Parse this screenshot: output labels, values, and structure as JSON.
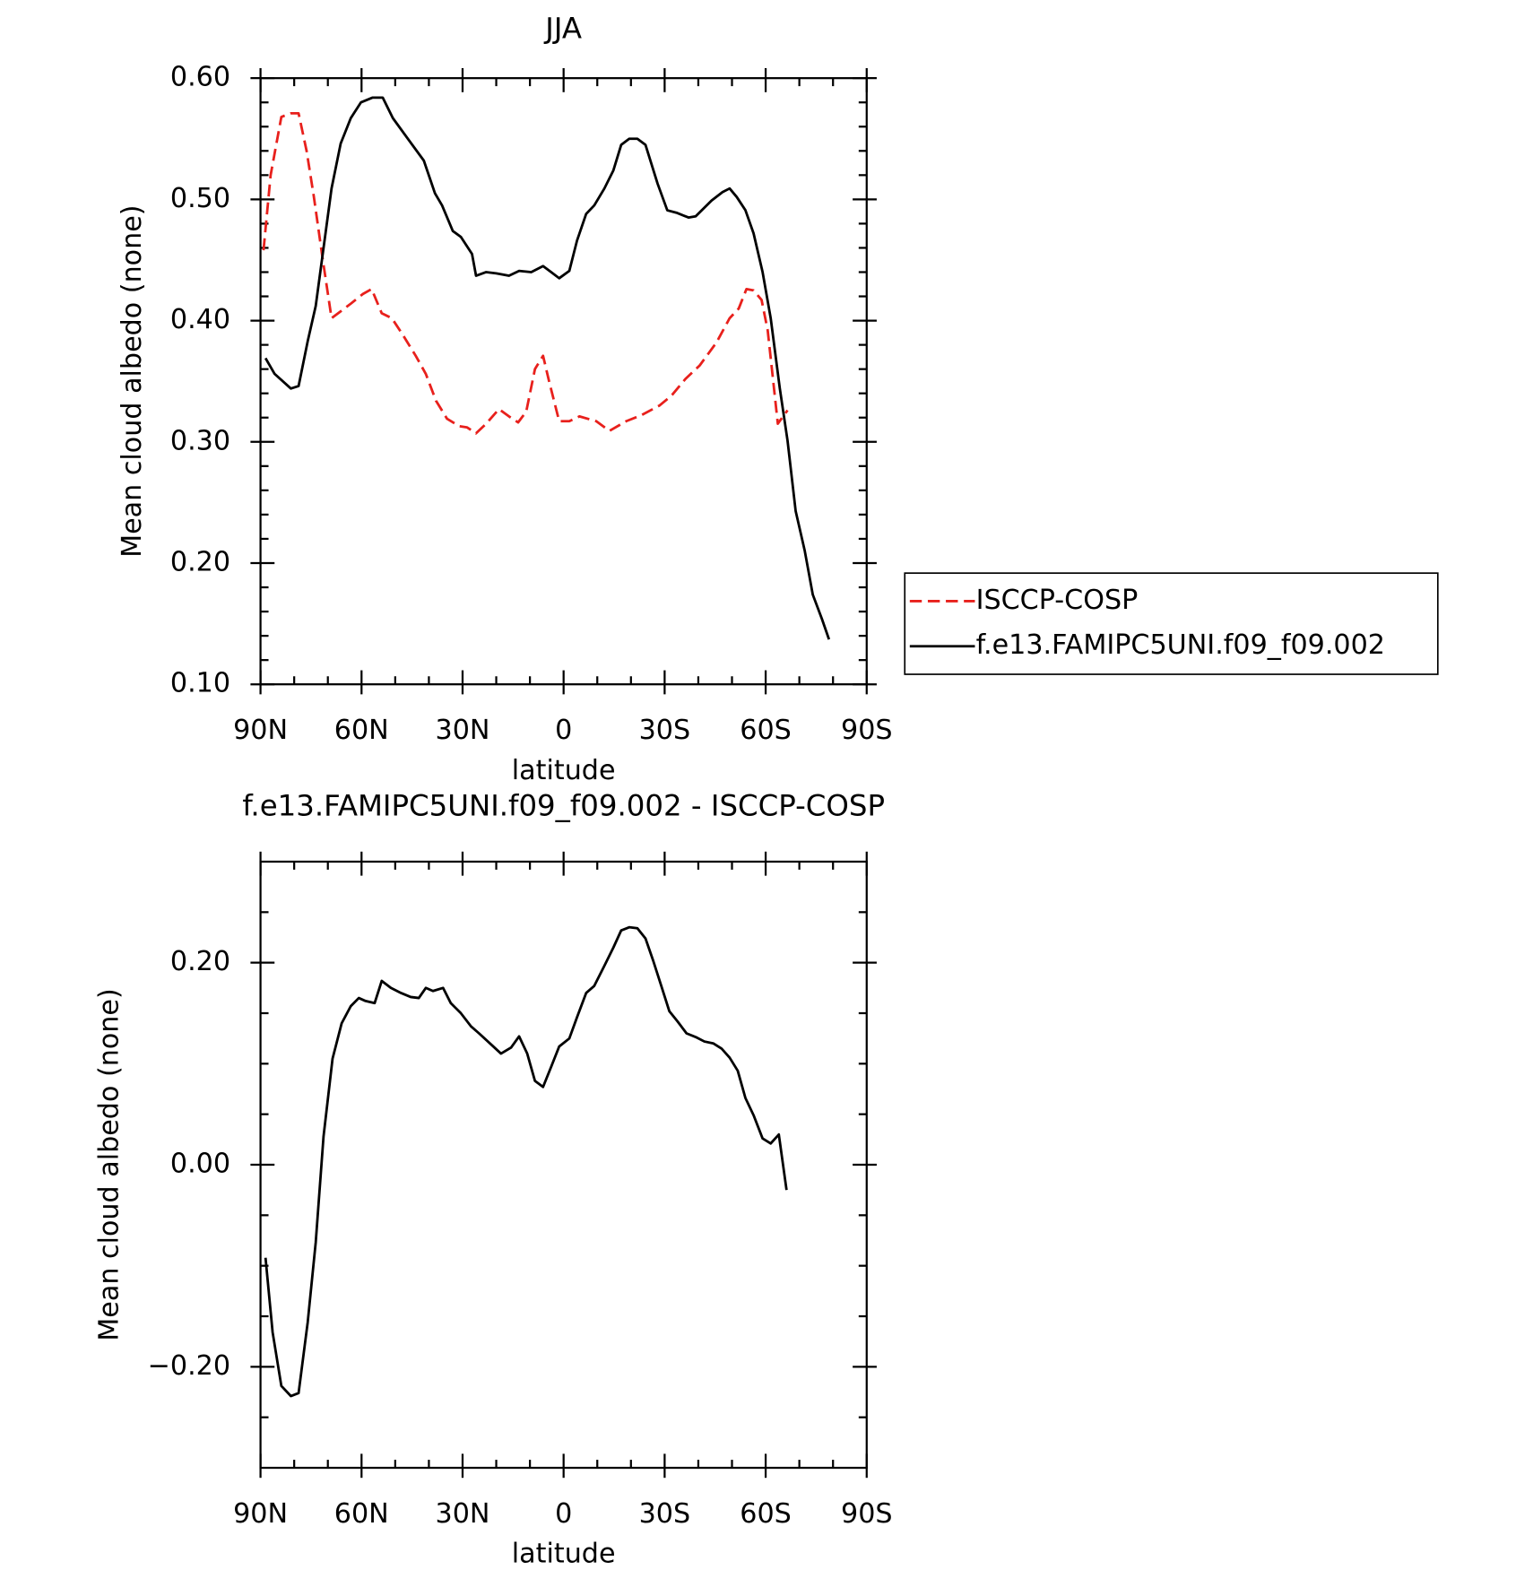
{
  "chart_data": [
    {
      "type": "line",
      "title": "JJA",
      "xlabel": "latitude",
      "ylabel": "Mean cloud albedo (none)",
      "xlim": [
        90,
        -90
      ],
      "xticks": [
        {
          "value": 90,
          "label": "90N"
        },
        {
          "value": 60,
          "label": "60N"
        },
        {
          "value": 30,
          "label": "30N"
        },
        0,
        {
          "value": -30,
          "label": "30S"
        },
        {
          "value": -60,
          "label": "60S"
        },
        {
          "value": -90,
          "label": "90S"
        }
      ],
      "xminor": [
        80,
        70,
        50,
        40,
        20,
        10,
        -10,
        -20,
        -40,
        -50,
        -70,
        -80
      ],
      "ylim": [
        0.1,
        0.6
      ],
      "yticks": [
        {
          "value": 0.1,
          "label": "0.10"
        },
        {
          "value": 0.2,
          "label": "0.20"
        },
        {
          "value": 0.3,
          "label": "0.30"
        },
        {
          "value": 0.4,
          "label": "0.40"
        },
        {
          "value": 0.5,
          "label": "0.50"
        },
        {
          "value": 0.6,
          "label": "0.60"
        }
      ],
      "yminor": [
        0.12,
        0.14,
        0.16,
        0.18,
        0.22,
        0.24,
        0.26,
        0.28,
        0.32,
        0.34,
        0.36,
        0.38,
        0.42,
        0.44,
        0.46,
        0.48,
        0.52,
        0.54,
        0.56,
        0.58
      ],
      "legend": "right",
      "series": [
        {
          "name": "ISCCP-COSP",
          "color": "#e8201c",
          "dash": true,
          "x": [
            89.1,
            87,
            83.8,
            81,
            78.7,
            76.3,
            74.2,
            71.5,
            68.9,
            63.2,
            59.6,
            57,
            54,
            51,
            47.7,
            43.9,
            40.9,
            37.9,
            34.6,
            31,
            28.7,
            26,
            23,
            19.2,
            16.2,
            13.5,
            11.1,
            8.5,
            6.1,
            4.3,
            1.3,
            -1.7,
            -4.7,
            -9.7,
            -13.6,
            -18.6,
            -23.1,
            -28.5,
            -32,
            -36.2,
            -40.4,
            -45.4,
            -49.3,
            -52,
            -54.3,
            -56.4,
            -58.8,
            -60.6,
            -63.6,
            -66.5
          ],
          "values": [
            0.458,
            0.52,
            0.568,
            0.571,
            0.571,
            0.54,
            0.503,
            0.45,
            0.402,
            0.414,
            0.422,
            0.426,
            0.406,
            0.402,
            0.388,
            0.371,
            0.356,
            0.334,
            0.319,
            0.313,
            0.312,
            0.307,
            0.315,
            0.327,
            0.321,
            0.316,
            0.325,
            0.36,
            0.371,
            0.35,
            0.317,
            0.317,
            0.321,
            0.317,
            0.309,
            0.317,
            0.322,
            0.33,
            0.338,
            0.352,
            0.363,
            0.382,
            0.402,
            0.41,
            0.426,
            0.425,
            0.417,
            0.392,
            0.315,
            0.326
          ]
        },
        {
          "name": "f.e13.FAMIPC5UNI.f09_f09.002",
          "color": "#000000",
          "dash": false,
          "x": [
            88.5,
            85.8,
            81,
            78.7,
            76,
            73.6,
            68.9,
            66.2,
            63.2,
            60.2,
            56.7,
            53.7,
            50.7,
            46,
            41.5,
            38.2,
            36.1,
            32.9,
            30.5,
            27.2,
            26,
            23,
            20,
            16.2,
            13.2,
            9.6,
            6.1,
            3.7,
            1.3,
            -1.7,
            -4,
            -6.7,
            -9.1,
            -12.1,
            -14.8,
            -17.1,
            -19.5,
            -21.9,
            -24.3,
            -27.9,
            -30.8,
            -33.5,
            -37.1,
            -39.2,
            -43.9,
            -47.2,
            -49.3,
            -51.4,
            -54,
            -56.4,
            -59.1,
            -61.5,
            -64.2,
            -66.5,
            -68.9,
            -71.6,
            -74,
            -76.7,
            -78.8
          ],
          "values": [
            0.369,
            0.356,
            0.344,
            0.346,
            0.383,
            0.412,
            0.509,
            0.546,
            0.567,
            0.58,
            0.584,
            0.584,
            0.567,
            0.549,
            0.532,
            0.505,
            0.495,
            0.474,
            0.469,
            0.455,
            0.437,
            0.44,
            0.439,
            0.437,
            0.441,
            0.44,
            0.445,
            0.44,
            0.435,
            0.441,
            0.466,
            0.488,
            0.495,
            0.509,
            0.524,
            0.545,
            0.55,
            0.55,
            0.545,
            0.513,
            0.491,
            0.489,
            0.485,
            0.486,
            0.499,
            0.506,
            0.509,
            0.502,
            0.491,
            0.472,
            0.44,
            0.402,
            0.344,
            0.301,
            0.243,
            0.21,
            0.174,
            0.154,
            0.137
          ]
        }
      ]
    },
    {
      "type": "line",
      "title": "f.e13.FAMIPC5UNI.f09_f09.002 - ISCCP-COSP",
      "xlabel": "latitude",
      "ylabel": "Mean cloud albedo (none)",
      "xlim": [
        90,
        -90
      ],
      "xticks": [
        {
          "value": 90,
          "label": "90N"
        },
        {
          "value": 60,
          "label": "60N"
        },
        {
          "value": 30,
          "label": "30N"
        },
        0,
        {
          "value": -30,
          "label": "30S"
        },
        {
          "value": -60,
          "label": "60S"
        },
        {
          "value": -90,
          "label": "90S"
        }
      ],
      "xminor": [
        80,
        70,
        50,
        40,
        20,
        10,
        -10,
        -20,
        -40,
        -50,
        -70,
        -80
      ],
      "ylim": [
        -0.3,
        0.3
      ],
      "yticks": [
        {
          "value": -0.2,
          "label": "−0.20"
        },
        {
          "value": 0,
          "label": "0.00"
        },
        {
          "value": 0.2,
          "label": "0.20"
        }
      ],
      "yminor": [
        -0.25,
        -0.15,
        -0.1,
        -0.05,
        0.05,
        0.1,
        0.15,
        0.25
      ],
      "series": [
        {
          "color": "#000000",
          "dash": false,
          "x": [
            88.5,
            86.4,
            83.8,
            81,
            78.7,
            76,
            73.6,
            71.3,
            68.6,
            65.9,
            63.2,
            60.8,
            58.8,
            56.1,
            54,
            51.3,
            48.3,
            45.4,
            43,
            40.9,
            38.8,
            35.8,
            33.5,
            30.5,
            27.5,
            25.1,
            21.5,
            18.6,
            15.6,
            13.2,
            10.8,
            8.5,
            6.1,
            3.7,
            1.3,
            -1.7,
            -4,
            -6.7,
            -9.1,
            -12.1,
            -14.8,
            -17.1,
            -19.5,
            -21.9,
            -24.3,
            -26.6,
            -29,
            -31.4,
            -33.8,
            -36.5,
            -39.5,
            -41.8,
            -44.5,
            -46.9,
            -49.3,
            -51.7,
            -54,
            -56.4,
            -59.1,
            -61.5,
            -63.9,
            -66.2
          ],
          "values": [
            -0.092,
            -0.166,
            -0.219,
            -0.229,
            -0.226,
            -0.156,
            -0.077,
            0.028,
            0.105,
            0.14,
            0.157,
            0.165,
            0.162,
            0.16,
            0.182,
            0.175,
            0.17,
            0.166,
            0.165,
            0.175,
            0.172,
            0.175,
            0.16,
            0.15,
            0.137,
            0.13,
            0.119,
            0.11,
            0.116,
            0.127,
            0.11,
            0.083,
            0.077,
            0.097,
            0.117,
            0.125,
            0.146,
            0.17,
            0.177,
            0.197,
            0.215,
            0.232,
            0.235,
            0.234,
            0.224,
            0.202,
            0.177,
            0.152,
            0.142,
            0.13,
            0.126,
            0.122,
            0.12,
            0.115,
            0.106,
            0.093,
            0.066,
            0.049,
            0.026,
            0.021,
            0.03,
            -0.025
          ]
        }
      ]
    }
  ]
}
